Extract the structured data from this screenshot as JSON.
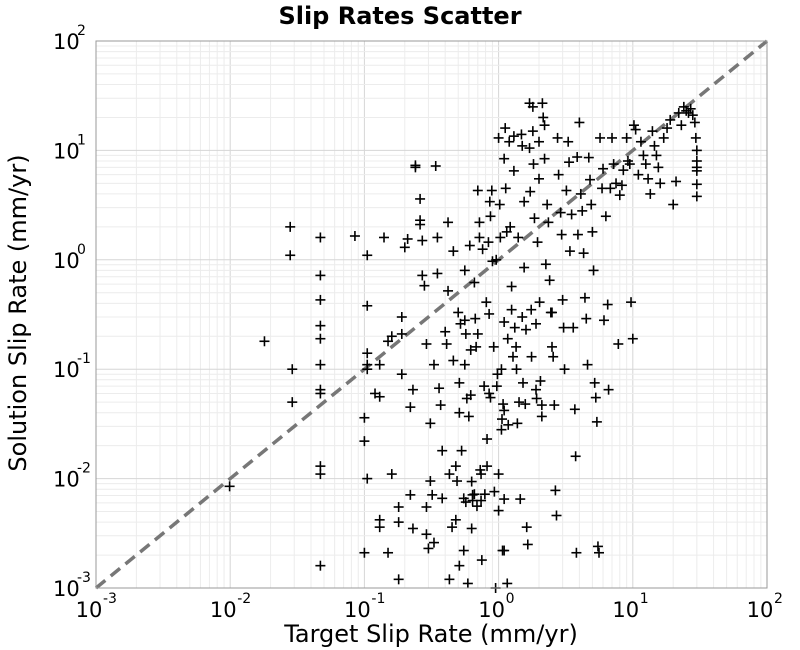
{
  "chart_data": {
    "type": "scatter",
    "title": "Slip Rates Scatter",
    "xlabel": "Target Slip Rate (mm/yr)",
    "ylabel": "Solution Slip Rate (mm/yr)",
    "xscale": "log",
    "yscale": "log",
    "xlim": [
      0.001,
      100
    ],
    "ylim": [
      0.001,
      100
    ],
    "grid": true,
    "marker": "plus",
    "marker_color": "#000000",
    "reference_line": {
      "type": "y=x",
      "style": "dashed",
      "color": "#777777"
    },
    "x_ticks": [
      {
        "base": "10",
        "exp": "-3"
      },
      {
        "base": "10",
        "exp": "-2"
      },
      {
        "base": "10",
        "exp": "-1"
      },
      {
        "base": "10",
        "exp": "0"
      },
      {
        "base": "10",
        "exp": "1"
      },
      {
        "base": "10",
        "exp": "2"
      }
    ],
    "y_ticks": [
      {
        "base": "10",
        "exp": "-3"
      },
      {
        "base": "10",
        "exp": "-2"
      },
      {
        "base": "10",
        "exp": "-1"
      },
      {
        "base": "10",
        "exp": "0"
      },
      {
        "base": "10",
        "exp": "1"
      },
      {
        "base": "10",
        "exp": "2"
      }
    ],
    "points": [
      [
        0.0099,
        0.0085
      ],
      [
        0.018,
        0.18
      ],
      [
        0.028,
        2.0
      ],
      [
        0.028,
        1.1
      ],
      [
        0.029,
        0.1
      ],
      [
        0.029,
        0.05
      ],
      [
        0.047,
        1.6
      ],
      [
        0.047,
        0.72
      ],
      [
        0.047,
        0.43
      ],
      [
        0.047,
        0.25
      ],
      [
        0.047,
        0.19
      ],
      [
        0.047,
        0.11
      ],
      [
        0.047,
        0.065
      ],
      [
        0.047,
        0.06
      ],
      [
        0.047,
        0.013
      ],
      [
        0.047,
        0.011
      ],
      [
        0.047,
        0.0016
      ],
      [
        0.085,
        1.65
      ],
      [
        0.1,
        0.036
      ],
      [
        0.1,
        0.022
      ],
      [
        0.1,
        0.0021
      ],
      [
        0.105,
        1.1
      ],
      [
        0.105,
        0.38
      ],
      [
        0.105,
        0.14
      ],
      [
        0.105,
        0.11
      ],
      [
        0.105,
        0.1
      ],
      [
        0.105,
        0.01
      ],
      [
        0.12,
        0.06
      ],
      [
        0.13,
        0.056
      ],
      [
        0.13,
        0.11
      ],
      [
        0.13,
        0.0042
      ],
      [
        0.13,
        0.0036
      ],
      [
        0.14,
        1.6
      ],
      [
        0.15,
        0.0021
      ],
      [
        0.15,
        0.18
      ],
      [
        0.16,
        0.011
      ],
      [
        0.16,
        0.2
      ],
      [
        0.18,
        0.004
      ],
      [
        0.18,
        0.0055
      ],
      [
        0.18,
        0.0012
      ],
      [
        0.19,
        0.09
      ],
      [
        0.19,
        0.21
      ],
      [
        0.19,
        0.3
      ],
      [
        0.2,
        1.3
      ],
      [
        0.21,
        1.55
      ],
      [
        0.22,
        0.045
      ],
      [
        0.22,
        0.0071
      ],
      [
        0.23,
        0.0035
      ],
      [
        0.23,
        0.065
      ],
      [
        0.24,
        7.0
      ],
      [
        0.24,
        7.3
      ],
      [
        0.26,
        3.6
      ],
      [
        0.26,
        2.3
      ],
      [
        0.26,
        2.1
      ],
      [
        0.27,
        1.5
      ],
      [
        0.27,
        0.72
      ],
      [
        0.28,
        0.58
      ],
      [
        0.29,
        0.0055
      ],
      [
        0.29,
        0.0031
      ],
      [
        0.29,
        0.17
      ],
      [
        0.3,
        0.0023
      ],
      [
        0.31,
        0.0095
      ],
      [
        0.31,
        0.032
      ],
      [
        0.32,
        0.0071
      ],
      [
        0.33,
        0.0026
      ],
      [
        0.33,
        0.11
      ],
      [
        0.34,
        7.2
      ],
      [
        0.35,
        1.6
      ],
      [
        0.35,
        0.75
      ],
      [
        0.36,
        0.067
      ],
      [
        0.37,
        0.047
      ],
      [
        0.38,
        0.0066
      ],
      [
        0.38,
        0.018
      ],
      [
        0.4,
        0.22
      ],
      [
        0.41,
        0.17
      ],
      [
        0.42,
        2.2
      ],
      [
        0.42,
        0.52
      ],
      [
        0.43,
        0.011
      ],
      [
        0.43,
        0.0012
      ],
      [
        0.45,
        0.0036
      ],
      [
        0.46,
        1.2
      ],
      [
        0.46,
        0.12
      ],
      [
        0.48,
        0.013
      ],
      [
        0.48,
        0.0042
      ],
      [
        0.49,
        0.0095
      ],
      [
        0.5,
        0.33
      ],
      [
        0.51,
        0.075
      ],
      [
        0.51,
        0.04
      ],
      [
        0.51,
        0.0016
      ],
      [
        0.52,
        0.26
      ],
      [
        0.53,
        0.018
      ],
      [
        0.55,
        0.0022
      ],
      [
        0.55,
        0.0066
      ],
      [
        0.56,
        0.8
      ],
      [
        0.56,
        0.28
      ],
      [
        0.56,
        0.11
      ],
      [
        0.57,
        0.21
      ],
      [
        0.57,
        0.0061
      ],
      [
        0.58,
        0.054
      ],
      [
        0.59,
        0.0011
      ],
      [
        0.6,
        0.037
      ],
      [
        0.61,
        1.35
      ],
      [
        0.62,
        0.15
      ],
      [
        0.62,
        0.058
      ],
      [
        0.63,
        0.0094
      ],
      [
        0.63,
        0.0035
      ],
      [
        0.64,
        0.0071
      ],
      [
        0.66,
        0.62
      ],
      [
        0.67,
        0.29
      ],
      [
        0.68,
        0.16
      ],
      [
        0.7,
        4.3
      ],
      [
        0.7,
        0.21
      ],
      [
        0.72,
        2.2
      ],
      [
        0.72,
        1.6
      ],
      [
        0.73,
        0.012
      ],
      [
        0.74,
        0.011
      ],
      [
        0.74,
        0.0063
      ],
      [
        0.75,
        0.0018
      ],
      [
        0.76,
        1.25
      ],
      [
        0.78,
        0.07
      ],
      [
        0.79,
        0.0072
      ],
      [
        0.81,
        0.41
      ],
      [
        0.82,
        0.023
      ],
      [
        0.82,
        0.013
      ],
      [
        0.84,
        1.45
      ],
      [
        0.85,
        0.32
      ],
      [
        0.85,
        0.06
      ],
      [
        0.86,
        3.4
      ],
      [
        0.87,
        2.5
      ],
      [
        0.87,
        0.055
      ],
      [
        0.89,
        4.3
      ],
      [
        0.9,
        0.97
      ],
      [
        0.92,
        0.16
      ],
      [
        0.93,
        0.0076
      ],
      [
        0.95,
        0.001
      ],
      [
        0.96,
        1.0
      ],
      [
        0.97,
        0.07
      ],
      [
        0.98,
        0.09
      ],
      [
        1.0,
        0.0051
      ],
      [
        1.0,
        0.011
      ],
      [
        1.0,
        13.0
      ],
      [
        1.02,
        3.2
      ],
      [
        1.03,
        1.6
      ],
      [
        1.05,
        0.1
      ],
      [
        1.05,
        0.028
      ],
      [
        1.06,
        0.035
      ],
      [
        1.08,
        0.048
      ],
      [
        1.1,
        0.042
      ],
      [
        1.1,
        8.4
      ],
      [
        1.1,
        0.27
      ],
      [
        1.1,
        0.0065
      ],
      [
        1.1,
        0.0022
      ],
      [
        1.12,
        16.0
      ],
      [
        1.13,
        4.5
      ],
      [
        1.15,
        1.8
      ],
      [
        1.17,
        0.19
      ],
      [
        1.18,
        0.031
      ],
      [
        1.2,
        12.0
      ],
      [
        1.22,
        2.0
      ],
      [
        1.25,
        0.57
      ],
      [
        1.25,
        0.35
      ],
      [
        1.28,
        0.13
      ],
      [
        1.3,
        13.5
      ],
      [
        1.3,
        6.5
      ],
      [
        1.32,
        0.24
      ],
      [
        1.35,
        0.16
      ],
      [
        1.36,
        0.1
      ],
      [
        1.38,
        0.032
      ],
      [
        1.4,
        1.6
      ],
      [
        1.42,
        0.05
      ],
      [
        1.45,
        0.0065
      ],
      [
        1.48,
        14.0
      ],
      [
        1.5,
        11.0
      ],
      [
        1.5,
        0.3
      ],
      [
        1.52,
        0.075
      ],
      [
        1.55,
        3.4
      ],
      [
        1.55,
        0.85
      ],
      [
        1.58,
        0.048
      ],
      [
        1.6,
        0.23
      ],
      [
        1.62,
        0.0036
      ],
      [
        1.65,
        0.0025
      ],
      [
        1.7,
        27.0
      ],
      [
        1.7,
        10.5
      ],
      [
        1.72,
        4.2
      ],
      [
        1.75,
        0.35
      ],
      [
        1.76,
        0.13
      ],
      [
        1.8,
        25.0
      ],
      [
        1.8,
        15.0
      ],
      [
        1.82,
        7.5
      ],
      [
        1.85,
        2.4
      ],
      [
        1.9,
        0.26
      ],
      [
        1.9,
        0.065
      ],
      [
        1.92,
        0.054
      ],
      [
        1.95,
        1.45
      ],
      [
        2.0,
        12.0
      ],
      [
        2.0,
        5.5
      ],
      [
        2.02,
        0.41
      ],
      [
        2.05,
        0.078
      ],
      [
        2.1,
        0.047
      ],
      [
        2.1,
        0.037
      ],
      [
        2.12,
        27.0
      ],
      [
        2.15,
        20.0
      ],
      [
        2.2,
        17.0
      ],
      [
        2.2,
        8.4
      ],
      [
        2.25,
        0.91
      ],
      [
        2.3,
        3.2
      ],
      [
        2.35,
        2.2
      ],
      [
        2.4,
        0.65
      ],
      [
        2.45,
        0.33
      ],
      [
        2.5,
        0.33
      ],
      [
        2.5,
        0.16
      ],
      [
        2.55,
        0.13
      ],
      [
        2.6,
        0.047
      ],
      [
        2.65,
        0.0078
      ],
      [
        2.7,
        0.0046
      ],
      [
        2.75,
        13.0
      ],
      [
        2.8,
        6.0
      ],
      [
        2.9,
        2.7
      ],
      [
        2.95,
        1.7
      ],
      [
        3.0,
        0.43
      ],
      [
        3.05,
        0.24
      ],
      [
        3.1,
        0.1
      ],
      [
        3.2,
        4.3
      ],
      [
        3.3,
        12.0
      ],
      [
        3.35,
        7.8
      ],
      [
        3.4,
        1.2
      ],
      [
        3.5,
        2.6
      ],
      [
        3.6,
        0.24
      ],
      [
        3.7,
        0.043
      ],
      [
        3.75,
        0.016
      ],
      [
        3.8,
        0.0021
      ],
      [
        3.85,
        8.7
      ],
      [
        3.9,
        1.7
      ],
      [
        4.0,
        18.0
      ],
      [
        4.1,
        4.0
      ],
      [
        4.2,
        2.8
      ],
      [
        4.3,
        1.15
      ],
      [
        4.4,
        0.45
      ],
      [
        4.5,
        0.29
      ],
      [
        4.6,
        0.11
      ],
      [
        4.7,
        8.6
      ],
      [
        4.8,
        5.4
      ],
      [
        4.9,
        3.2
      ],
      [
        5.0,
        1.8
      ],
      [
        5.1,
        0.8
      ],
      [
        5.2,
        0.075
      ],
      [
        5.3,
        0.055
      ],
      [
        5.4,
        0.033
      ],
      [
        5.5,
        0.0024
      ],
      [
        5.6,
        0.0021
      ],
      [
        5.7,
        13.0
      ],
      [
        5.9,
        4.5
      ],
      [
        6.0,
        6.8
      ],
      [
        6.1,
        0.28
      ],
      [
        6.3,
        2.5
      ],
      [
        6.5,
        0.39
      ],
      [
        6.6,
        0.065
      ],
      [
        6.8,
        4.5
      ],
      [
        7.0,
        13.0
      ],
      [
        7.2,
        7.5
      ],
      [
        7.5,
        5.0
      ],
      [
        7.8,
        0.17
      ],
      [
        8.0,
        3.9
      ],
      [
        8.3,
        4.8
      ],
      [
        8.5,
        6.6
      ],
      [
        9.0,
        13.0
      ],
      [
        9.2,
        8.0
      ],
      [
        9.5,
        7.5
      ],
      [
        9.7,
        0.41
      ],
      [
        10.0,
        0.19
      ],
      [
        10.2,
        17.0
      ],
      [
        10.5,
        15.5
      ],
      [
        11.0,
        6.0
      ],
      [
        11.5,
        12.0
      ],
      [
        12.0,
        9.0
      ],
      [
        12.5,
        7.5
      ],
      [
        13.0,
        5.5
      ],
      [
        13.5,
        4.0
      ],
      [
        14.0,
        15.0
      ],
      [
        14.5,
        11.0
      ],
      [
        15.0,
        9.0
      ],
      [
        15.5,
        7.0
      ],
      [
        16.0,
        5.0
      ],
      [
        17.0,
        13.0
      ],
      [
        18.0,
        16.0
      ],
      [
        19.0,
        19.0
      ],
      [
        20.0,
        3.2
      ],
      [
        21.0,
        5.2
      ],
      [
        22.0,
        22.0
      ],
      [
        23.0,
        17.0
      ],
      [
        24.0,
        25.0
      ],
      [
        25.0,
        23.0
      ],
      [
        26.0,
        22.0
      ],
      [
        27.0,
        24.0
      ],
      [
        28.0,
        21.0
      ],
      [
        29.0,
        18.0
      ],
      [
        29.5,
        13.0
      ],
      [
        30.0,
        10.0
      ],
      [
        30.0,
        8.0
      ],
      [
        30.0,
        7.0
      ],
      [
        30.0,
        6.5
      ],
      [
        30.0,
        4.9
      ],
      [
        30.0,
        3.8
      ],
      [
        0.64,
        0.0063
      ],
      [
        0.66,
        0.0072
      ],
      [
        0.69,
        0.0056
      ],
      [
        1.07,
        0.0022
      ],
      [
        1.16,
        0.0011
      ]
    ]
  }
}
